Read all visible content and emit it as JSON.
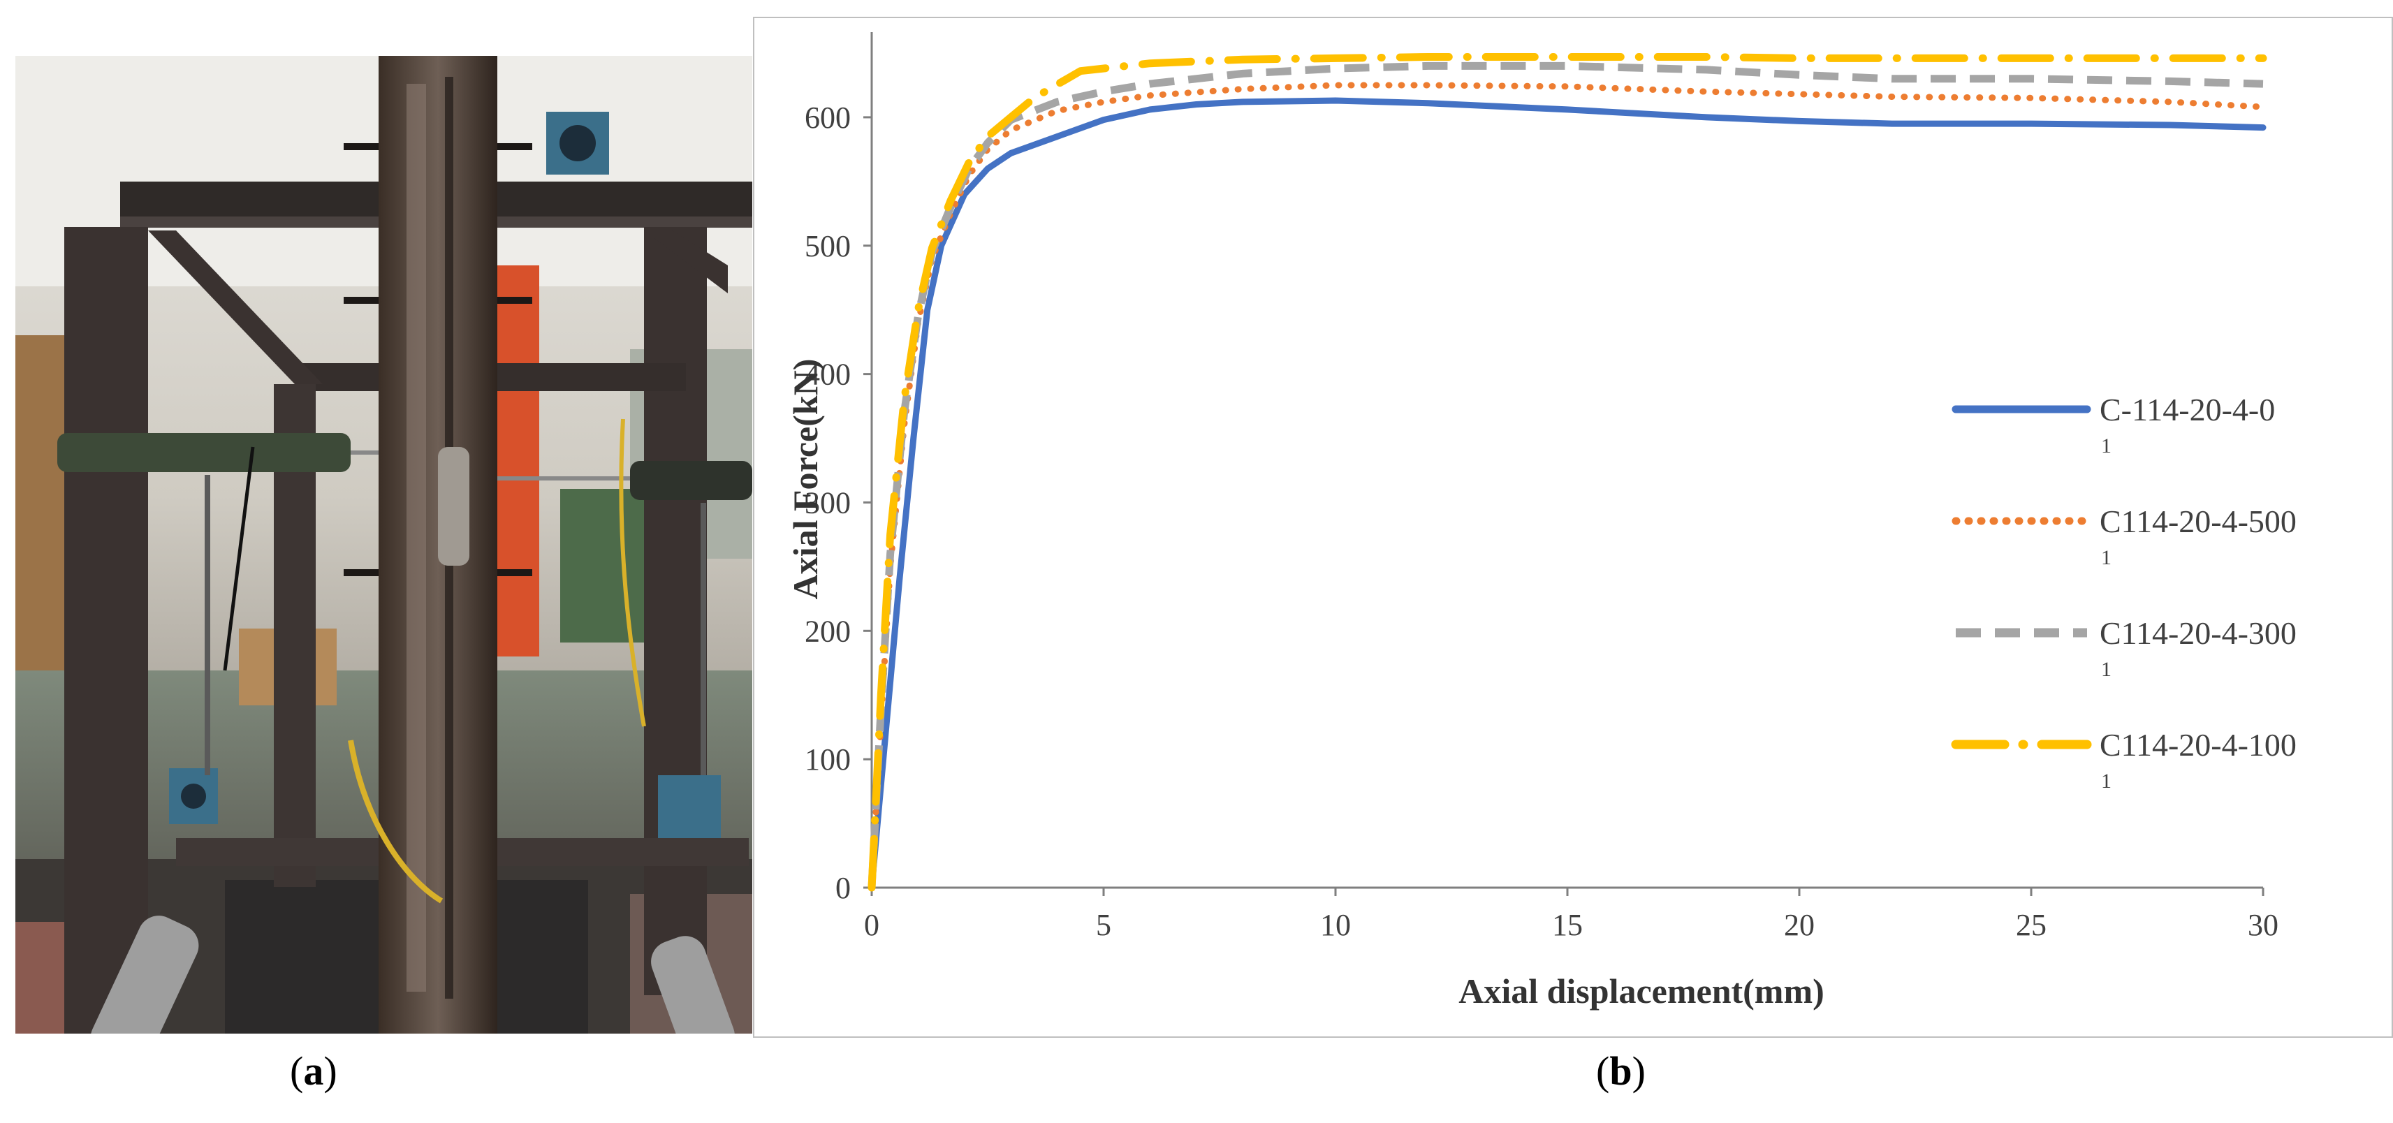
{
  "captions": {
    "a": "a",
    "b": "b"
  },
  "chart_data": {
    "type": "line",
    "title": "",
    "xlabel": "Axial displacement(mm)",
    "ylabel": "Axial Force(kN)",
    "xlim": [
      0,
      30
    ],
    "ylim": [
      0,
      650
    ],
    "xticks": [
      0,
      5,
      10,
      15,
      20,
      25,
      30
    ],
    "yticks": [
      0,
      100,
      200,
      300,
      400,
      500,
      600
    ],
    "grid": false,
    "legend_position": "right",
    "series": [
      {
        "name": "C-114-20-4-0",
        "name_main": "C-114-20-4-0",
        "name_sub": "1",
        "color": "#4472C4",
        "style": "solid",
        "x": [
          0,
          0.3,
          0.6,
          0.9,
          1.2,
          1.5,
          2.0,
          2.5,
          3.0,
          4.0,
          5.0,
          6.0,
          7.0,
          8.0,
          10.0,
          12.0,
          15.0,
          18.0,
          20.0,
          22.0,
          25.0,
          28.0,
          30.0
        ],
        "y": [
          0,
          120,
          240,
          350,
          450,
          500,
          540,
          560,
          572,
          585,
          598,
          606,
          610,
          612,
          613,
          611,
          606,
          600,
          597,
          595,
          595,
          594,
          592
        ]
      },
      {
        "name": "C114-20-4-500",
        "name_main": "C114-20-4-500",
        "name_sub": "1",
        "color": "#ED7D31",
        "style": "dotted",
        "x": [
          0,
          0.2,
          0.4,
          0.7,
          1.0,
          1.3,
          1.7,
          2.1,
          2.5,
          3.0,
          4.0,
          5.0,
          6.0,
          8.0,
          10.0,
          12.0,
          15.0,
          18.0,
          20.0,
          22.0,
          25.0,
          28.0,
          30.0
        ],
        "y": [
          0,
          130,
          250,
          360,
          440,
          490,
          525,
          555,
          575,
          590,
          605,
          612,
          617,
          622,
          625,
          625,
          624,
          620,
          618,
          616,
          615,
          612,
          608
        ]
      },
      {
        "name": "C114-20-4-300",
        "name_main": "C114-20-4-300",
        "name_sub": "1",
        "color": "#A5A5A5",
        "style": "dashed",
        "x": [
          0,
          0.2,
          0.4,
          0.7,
          1.0,
          1.3,
          1.7,
          2.1,
          2.5,
          3.0,
          4.0,
          5.0,
          6.0,
          8.0,
          10.0,
          12.0,
          15.0,
          18.0,
          20.0,
          22.0,
          25.0,
          28.0,
          30.0
        ],
        "y": [
          0,
          140,
          260,
          370,
          445,
          495,
          530,
          560,
          580,
          598,
          612,
          620,
          626,
          634,
          638,
          640,
          640,
          637,
          633,
          630,
          630,
          628,
          626
        ]
      },
      {
        "name": "C114-20-4-100",
        "name_main": "C114-20-4-100",
        "name_sub": "1",
        "color": "#FFC000",
        "style": "dashdot",
        "x": [
          0,
          0.2,
          0.4,
          0.7,
          1.0,
          1.3,
          1.7,
          2.1,
          2.5,
          3.0,
          3.5,
          4.5,
          6.0,
          8.0,
          10.0,
          12.0,
          15.0,
          18.0,
          20.0,
          22.0,
          25.0,
          28.0,
          30.0
        ],
        "y": [
          0,
          150,
          275,
          380,
          450,
          498,
          535,
          565,
          585,
          600,
          615,
          636,
          642,
          645,
          646,
          647,
          647,
          647,
          646,
          646,
          646,
          646,
          646
        ]
      }
    ]
  }
}
